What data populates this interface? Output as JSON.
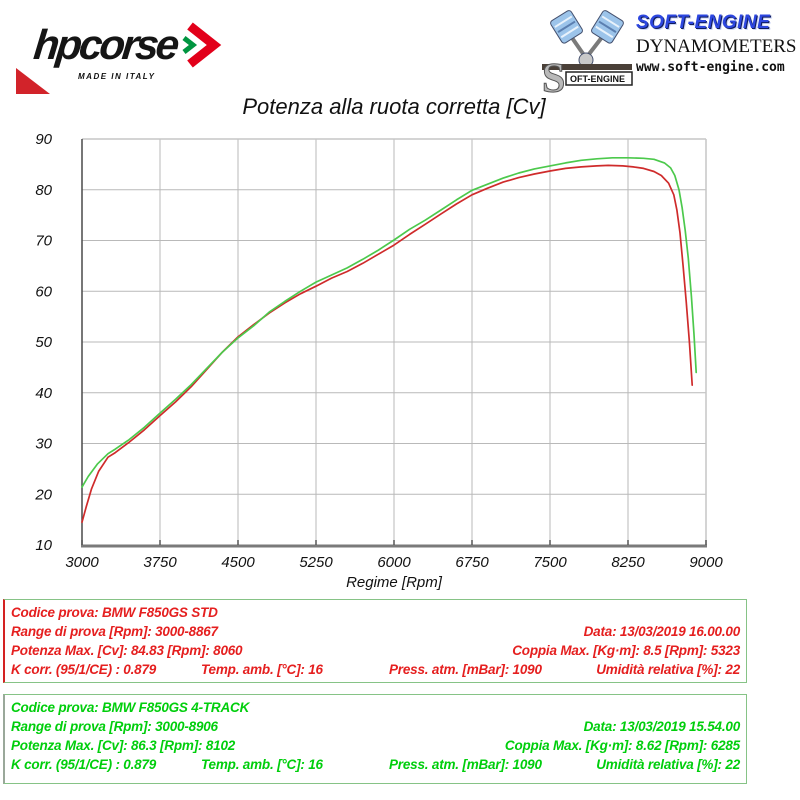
{
  "branding": {
    "hpcorse": {
      "name": "hpcorse",
      "tagline": "MADE IN ITALY"
    },
    "softengine": {
      "name": "SOFT-ENGINE",
      "subtitle": "DYNAMOMETERS",
      "url": "www.soft-engine.com",
      "icon_label": "OFT-ENGINE"
    }
  },
  "chart_data": {
    "type": "line",
    "title": "Potenza alla ruota corretta [Cv]",
    "xlabel": "Regime [Rpm]",
    "ylabel": "",
    "xlim": [
      3000,
      9000
    ],
    "ylim": [
      10,
      90
    ],
    "xticks": [
      3000,
      3750,
      4500,
      5250,
      6000,
      6750,
      7500,
      8250,
      9000
    ],
    "yticks": [
      10,
      20,
      30,
      40,
      50,
      60,
      70,
      80,
      90
    ],
    "grid": true,
    "legend_position": "none",
    "series": [
      {
        "name": "BMW F850GS STD",
        "color": "#cf2b2b",
        "points": [
          [
            3000,
            14.5
          ],
          [
            3040,
            17.5
          ],
          [
            3090,
            21
          ],
          [
            3160,
            24.5
          ],
          [
            3250,
            27.3
          ],
          [
            3320,
            28.2
          ],
          [
            3450,
            30.2
          ],
          [
            3600,
            32.7
          ],
          [
            3750,
            35.5
          ],
          [
            3900,
            38.2
          ],
          [
            4050,
            41.2
          ],
          [
            4200,
            44.6
          ],
          [
            4350,
            48
          ],
          [
            4500,
            51
          ],
          [
            4650,
            53.4
          ],
          [
            4800,
            55.7
          ],
          [
            4950,
            57.7
          ],
          [
            5100,
            59.5
          ],
          [
            5250,
            61
          ],
          [
            5400,
            62.6
          ],
          [
            5550,
            63.9
          ],
          [
            5700,
            65.5
          ],
          [
            5850,
            67.3
          ],
          [
            6000,
            69.1
          ],
          [
            6150,
            71.2
          ],
          [
            6300,
            73.2
          ],
          [
            6450,
            75.2
          ],
          [
            6600,
            77.2
          ],
          [
            6750,
            79
          ],
          [
            6900,
            80.3
          ],
          [
            7050,
            81.5
          ],
          [
            7200,
            82.4
          ],
          [
            7350,
            83.1
          ],
          [
            7500,
            83.7
          ],
          [
            7650,
            84.2
          ],
          [
            7800,
            84.5
          ],
          [
            7950,
            84.7
          ],
          [
            8060,
            84.8
          ],
          [
            8200,
            84.7
          ],
          [
            8300,
            84.5
          ],
          [
            8400,
            84.2
          ],
          [
            8500,
            83.6
          ],
          [
            8570,
            82.8
          ],
          [
            8640,
            81.3
          ],
          [
            8690,
            79
          ],
          [
            8720,
            76
          ],
          [
            8750,
            71.5
          ],
          [
            8780,
            65
          ],
          [
            8810,
            58
          ],
          [
            8840,
            50
          ],
          [
            8867,
            41.5
          ]
        ]
      },
      {
        "name": "BMW F850GS 4-TRACK",
        "color": "#4cc94c",
        "points": [
          [
            3000,
            21.4
          ],
          [
            3060,
            23.5
          ],
          [
            3150,
            26
          ],
          [
            3250,
            28
          ],
          [
            3320,
            28.9
          ],
          [
            3450,
            30.7
          ],
          [
            3600,
            33.2
          ],
          [
            3750,
            36
          ],
          [
            3900,
            38.7
          ],
          [
            4050,
            41.6
          ],
          [
            4200,
            44.8
          ],
          [
            4350,
            48
          ],
          [
            4500,
            50.8
          ],
          [
            4650,
            53.2
          ],
          [
            4800,
            55.9
          ],
          [
            4950,
            58
          ],
          [
            5100,
            60
          ],
          [
            5250,
            61.8
          ],
          [
            5400,
            63.2
          ],
          [
            5550,
            64.6
          ],
          [
            5700,
            66.3
          ],
          [
            5850,
            68.1
          ],
          [
            6000,
            70.1
          ],
          [
            6150,
            72.2
          ],
          [
            6300,
            74
          ],
          [
            6450,
            76
          ],
          [
            6600,
            78
          ],
          [
            6750,
            79.9
          ],
          [
            6900,
            81.1
          ],
          [
            7050,
            82.3
          ],
          [
            7200,
            83.3
          ],
          [
            7350,
            84.1
          ],
          [
            7500,
            84.7
          ],
          [
            7650,
            85.3
          ],
          [
            7800,
            85.8
          ],
          [
            7950,
            86.1
          ],
          [
            8100,
            86.3
          ],
          [
            8250,
            86.3
          ],
          [
            8400,
            86.2
          ],
          [
            8500,
            86
          ],
          [
            8600,
            85.3
          ],
          [
            8660,
            84.3
          ],
          [
            8700,
            82.8
          ],
          [
            8740,
            80
          ],
          [
            8770,
            76.5
          ],
          [
            8800,
            72
          ],
          [
            8830,
            66.5
          ],
          [
            8860,
            59
          ],
          [
            8885,
            51.5
          ],
          [
            8906,
            44
          ]
        ]
      }
    ]
  },
  "info_boxes": [
    {
      "test_name": "BMW F850GS STD",
      "text_color": "#e51f1f",
      "codice": "Codice prova: BMW F850GS STD",
      "range": "Range di prova [Rpm]: 3000-8867",
      "data": "Data: 13/03/2019  16.00.00",
      "potenza": "Potenza Max. [Cv]: 84.83   [Rpm]: 8060",
      "coppia": "Coppia Max. [Kg·m]: 8.5   [Rpm]: 5323",
      "kcorr": "K corr. (95/1/CE) : 0.879",
      "temp": "Temp. amb. [°C]: 16",
      "press": "Press. atm. [mBar]: 1090",
      "umidita": "Umidità relativa [%]: 22"
    },
    {
      "test_name": "BMW F850GS 4-TRACK",
      "text_color": "#00ce0c",
      "codice": "Codice prova: BMW F850GS 4-TRACK",
      "range": "Range di prova [Rpm]: 3000-8906",
      "data": "Data: 13/03/2019  15.54.00",
      "potenza": "Potenza Max. [Cv]: 86.3   [Rpm]: 8102",
      "coppia": "Coppia Max. [Kg·m]: 8.62   [Rpm]: 6285",
      "kcorr": "K corr. (95/1/CE) : 0.879",
      "temp": "Temp. amb. [°C]: 16",
      "press": "Press. atm. [mBar]: 1090",
      "umidita": "Umidità relativa [%]: 22"
    }
  ]
}
